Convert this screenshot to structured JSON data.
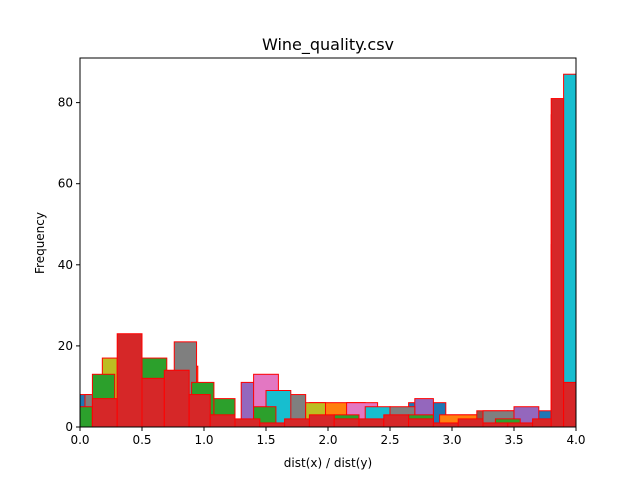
{
  "chart_data": {
    "type": "bar",
    "title": "Wine_quality.csv",
    "xlabel": "dist(x) / dist(y)",
    "ylabel": "Frequency",
    "xlim": [
      0.0,
      4.0
    ],
    "ylim": [
      0,
      91
    ],
    "xticks": [
      "0.0",
      "0.5",
      "1.0",
      "1.5",
      "2.0",
      "2.5",
      "3.0",
      "3.5",
      "4.0"
    ],
    "yticks": [
      "0",
      "20",
      "40",
      "60",
      "80"
    ],
    "grid": false,
    "edge_color": "#ff0000",
    "series": [
      {
        "color": "#1f77b4",
        "bins": [
          [
            0.0,
            0.08,
            8
          ],
          [
            2.65,
            2.95,
            6
          ],
          [
            2.95,
            3.45,
            3
          ],
          [
            3.45,
            3.8,
            4
          ],
          [
            3.8,
            4.0,
            45
          ]
        ]
      },
      {
        "color": "#ff7f0e",
        "bins": [
          [
            0.8,
            0.95,
            15
          ],
          [
            1.85,
            2.3,
            6
          ],
          [
            2.9,
            3.4,
            3
          ],
          [
            3.85,
            4.0,
            40
          ]
        ]
      },
      {
        "color": "#9467bd",
        "bins": [
          [
            1.3,
            1.5,
            11
          ],
          [
            2.7,
            2.85,
            7
          ],
          [
            3.5,
            3.7,
            5
          ],
          [
            3.85,
            4.0,
            41
          ]
        ]
      },
      {
        "color": "#8c564b",
        "bins": [
          [
            3.2,
            3.45,
            4
          ]
        ]
      },
      {
        "color": "#e377c2",
        "bins": [
          [
            1.4,
            1.6,
            13
          ],
          [
            2.15,
            2.4,
            6
          ]
        ]
      },
      {
        "color": "#7f7f7f",
        "bins": [
          [
            0.04,
            0.18,
            8
          ],
          [
            0.76,
            0.94,
            21
          ],
          [
            1.62,
            1.82,
            8
          ],
          [
            2.5,
            2.7,
            5
          ],
          [
            3.25,
            3.5,
            4
          ]
        ]
      },
      {
        "color": "#bcbd22",
        "bins": [
          [
            0.18,
            0.3,
            17
          ],
          [
            1.82,
            1.98,
            6
          ],
          [
            3.8,
            4.0,
            77
          ]
        ]
      },
      {
        "color": "#17becf",
        "bins": [
          [
            1.5,
            1.7,
            9
          ],
          [
            2.3,
            2.5,
            5
          ],
          [
            3.9,
            4.0,
            87
          ]
        ]
      },
      {
        "color": "#2ca02c",
        "bins": [
          [
            0.0,
            0.1,
            5
          ],
          [
            0.1,
            0.28,
            13
          ],
          [
            0.5,
            0.7,
            17
          ],
          [
            0.9,
            1.08,
            11
          ],
          [
            1.08,
            1.25,
            7
          ],
          [
            1.4,
            1.58,
            5
          ],
          [
            2.05,
            2.25,
            3
          ],
          [
            2.65,
            2.85,
            3
          ],
          [
            3.35,
            3.55,
            2
          ]
        ]
      },
      {
        "color": "#d62728",
        "bins": [
          [
            0.1,
            0.3,
            7
          ],
          [
            0.3,
            0.5,
            23
          ],
          [
            0.5,
            0.68,
            12
          ],
          [
            0.68,
            0.88,
            14
          ],
          [
            0.88,
            1.05,
            8
          ],
          [
            1.05,
            1.25,
            3
          ],
          [
            1.25,
            1.45,
            2
          ],
          [
            1.45,
            1.65,
            1
          ],
          [
            1.65,
            1.85,
            2
          ],
          [
            1.85,
            2.05,
            3
          ],
          [
            2.05,
            2.25,
            2
          ],
          [
            2.25,
            2.45,
            2
          ],
          [
            2.45,
            2.65,
            3
          ],
          [
            2.65,
            2.85,
            2
          ],
          [
            2.85,
            3.05,
            1
          ],
          [
            3.05,
            3.25,
            2
          ],
          [
            3.25,
            3.45,
            1
          ],
          [
            3.45,
            3.65,
            1
          ],
          [
            3.65,
            3.8,
            2
          ],
          [
            3.8,
            3.9,
            81
          ],
          [
            3.9,
            4.0,
            11
          ]
        ]
      }
    ]
  }
}
